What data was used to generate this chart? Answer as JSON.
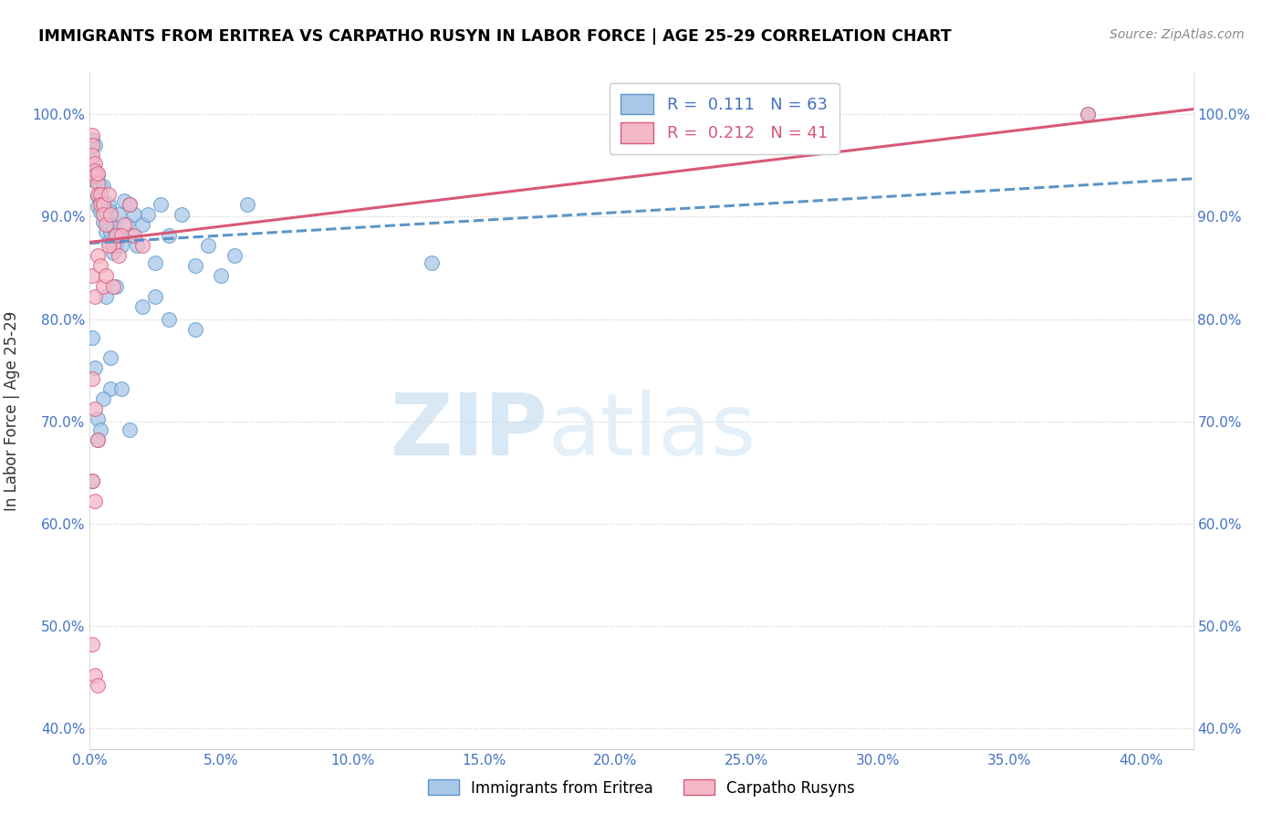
{
  "title": "IMMIGRANTS FROM ERITREA VS CARPATHO RUSYN IN LABOR FORCE | AGE 25-29 CORRELATION CHART",
  "source": "Source: ZipAtlas.com",
  "ylabel": "In Labor Force | Age 25-29",
  "r_eritrea": 0.111,
  "n_eritrea": 63,
  "r_carpatho": 0.212,
  "n_carpatho": 41,
  "legend_label_eritrea": "Immigrants from Eritrea",
  "legend_label_carpatho": "Carpatho Rusyns",
  "xlim": [
    0.0,
    0.42
  ],
  "ylim": [
    0.38,
    1.04
  ],
  "yticks": [
    0.4,
    0.5,
    0.6,
    0.7,
    0.8,
    0.9,
    1.0
  ],
  "xticks": [
    0.0,
    0.05,
    0.1,
    0.15,
    0.2,
    0.25,
    0.3,
    0.35,
    0.4
  ],
  "color_eritrea_face": "#a8c8e8",
  "color_eritrea_edge": "#5a95c8",
  "color_carpatho_face": "#f4b8c8",
  "color_carpatho_edge": "#d85878",
  "line_color_eritrea": "#5a95c8",
  "line_color_carpatho": "#d85878",
  "blue_x": [
    0.001,
    0.001,
    0.002,
    0.002,
    0.003,
    0.003,
    0.003,
    0.004,
    0.004,
    0.004,
    0.005,
    0.005,
    0.005,
    0.006,
    0.006,
    0.007,
    0.007,
    0.007,
    0.008,
    0.008,
    0.009,
    0.009,
    0.01,
    0.01,
    0.011,
    0.011,
    0.012,
    0.013,
    0.014,
    0.015,
    0.016,
    0.017,
    0.018,
    0.02,
    0.022,
    0.025,
    0.027,
    0.03,
    0.035,
    0.04,
    0.045,
    0.05,
    0.055,
    0.06,
    0.001,
    0.002,
    0.003,
    0.004,
    0.006,
    0.008,
    0.01,
    0.13,
    0.38,
    0.001,
    0.003,
    0.005,
    0.008,
    0.012,
    0.015,
    0.02,
    0.025,
    0.03,
    0.04
  ],
  "blue_y": [
    0.955,
    0.975,
    0.935,
    0.97,
    0.91,
    0.94,
    0.92,
    0.905,
    0.93,
    0.915,
    0.895,
    0.915,
    0.93,
    0.905,
    0.885,
    0.892,
    0.912,
    0.875,
    0.905,
    0.885,
    0.865,
    0.89,
    0.882,
    0.872,
    0.882,
    0.902,
    0.872,
    0.915,
    0.892,
    0.912,
    0.882,
    0.902,
    0.872,
    0.892,
    0.902,
    0.855,
    0.912,
    0.882,
    0.902,
    0.852,
    0.872,
    0.842,
    0.862,
    0.912,
    0.782,
    0.752,
    0.702,
    0.692,
    0.822,
    0.732,
    0.832,
    0.855,
    1.0,
    0.642,
    0.682,
    0.722,
    0.762,
    0.732,
    0.692,
    0.812,
    0.822,
    0.8,
    0.79
  ],
  "pink_x": [
    0.001,
    0.001,
    0.001,
    0.002,
    0.002,
    0.002,
    0.003,
    0.003,
    0.003,
    0.004,
    0.004,
    0.005,
    0.005,
    0.006,
    0.007,
    0.008,
    0.009,
    0.01,
    0.011,
    0.013,
    0.015,
    0.017,
    0.02,
    0.001,
    0.002,
    0.003,
    0.004,
    0.005,
    0.006,
    0.007,
    0.009,
    0.012,
    0.001,
    0.002,
    0.003,
    0.001,
    0.002,
    0.38,
    0.001,
    0.002,
    0.003
  ],
  "pink_y": [
    0.98,
    0.97,
    0.96,
    0.952,
    0.945,
    0.94,
    0.932,
    0.942,
    0.922,
    0.922,
    0.912,
    0.912,
    0.902,
    0.892,
    0.922,
    0.902,
    0.872,
    0.882,
    0.862,
    0.892,
    0.912,
    0.882,
    0.872,
    0.842,
    0.822,
    0.862,
    0.852,
    0.832,
    0.842,
    0.872,
    0.832,
    0.882,
    0.742,
    0.712,
    0.682,
    0.642,
    0.622,
    1.0,
    0.482,
    0.452,
    0.442
  ],
  "trend_eritrea_x0": 0.0,
  "trend_eritrea_y0": 0.874,
  "trend_eritrea_x1": 0.42,
  "trend_eritrea_y1": 0.937,
  "trend_carpatho_x0": 0.0,
  "trend_carpatho_y0": 0.875,
  "trend_carpatho_x1": 0.42,
  "trend_carpatho_y1": 1.005,
  "watermark_zip": "ZIP",
  "watermark_atlas": "atlas"
}
